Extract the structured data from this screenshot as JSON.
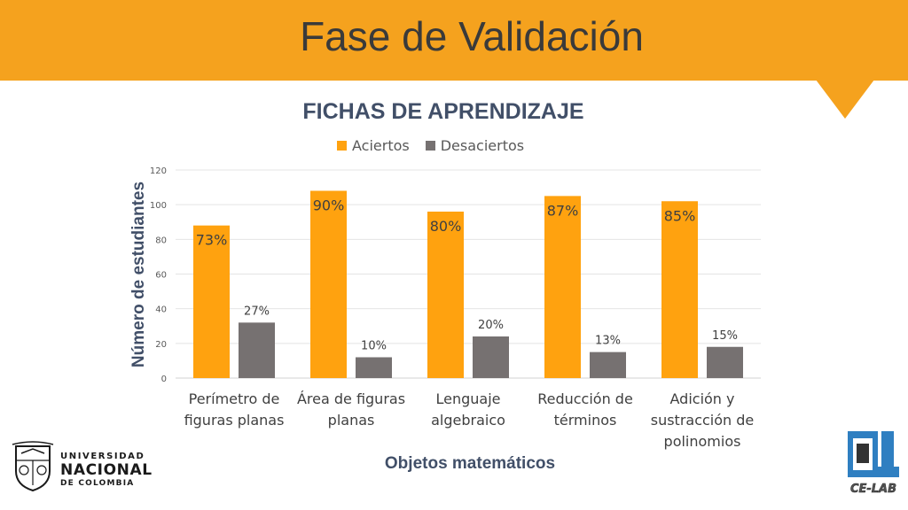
{
  "header": {
    "title": "Fase de Validación"
  },
  "colors": {
    "accent": "#f5a21e",
    "aciertos": "#ffa20f",
    "desaciertos": "#767171",
    "axis_text": "#414f68"
  },
  "chart_data": {
    "type": "bar",
    "title": "FICHAS DE APRENDIZAJE",
    "xlabel": "Objetos matemáticos",
    "ylabel": "Número de estudiantes",
    "ylim": [
      0,
      120
    ],
    "yticks": [
      "0",
      "20",
      "40",
      "60",
      "80",
      "100",
      "120"
    ],
    "grid": true,
    "legend_position": "top",
    "categories": [
      [
        "Perímetro de",
        "figuras planas"
      ],
      [
        "Área de figuras",
        "planas"
      ],
      [
        "Lenguaje",
        "algebraico"
      ],
      [
        "Reducción de",
        "términos"
      ],
      [
        "Adición y",
        "sustracción de",
        "polinomios"
      ]
    ],
    "series": [
      {
        "name": "Aciertos",
        "color": "#ffa20f",
        "values": [
          88,
          108,
          96,
          105,
          102
        ],
        "labels": [
          "73%",
          "90%",
          "80%",
          "87%",
          "85%"
        ]
      },
      {
        "name": "Desaciertos",
        "color": "#767171",
        "values": [
          32,
          12,
          24,
          15,
          18
        ],
        "labels": [
          "27%",
          "10%",
          "20%",
          "13%",
          "15%"
        ]
      }
    ]
  },
  "logos": {
    "unal": {
      "line1": "UNIVERSIDAD",
      "line2": "NACIONAL",
      "line3": "DE COLOMBIA"
    },
    "celab": {
      "text": "CE-LAB"
    }
  }
}
